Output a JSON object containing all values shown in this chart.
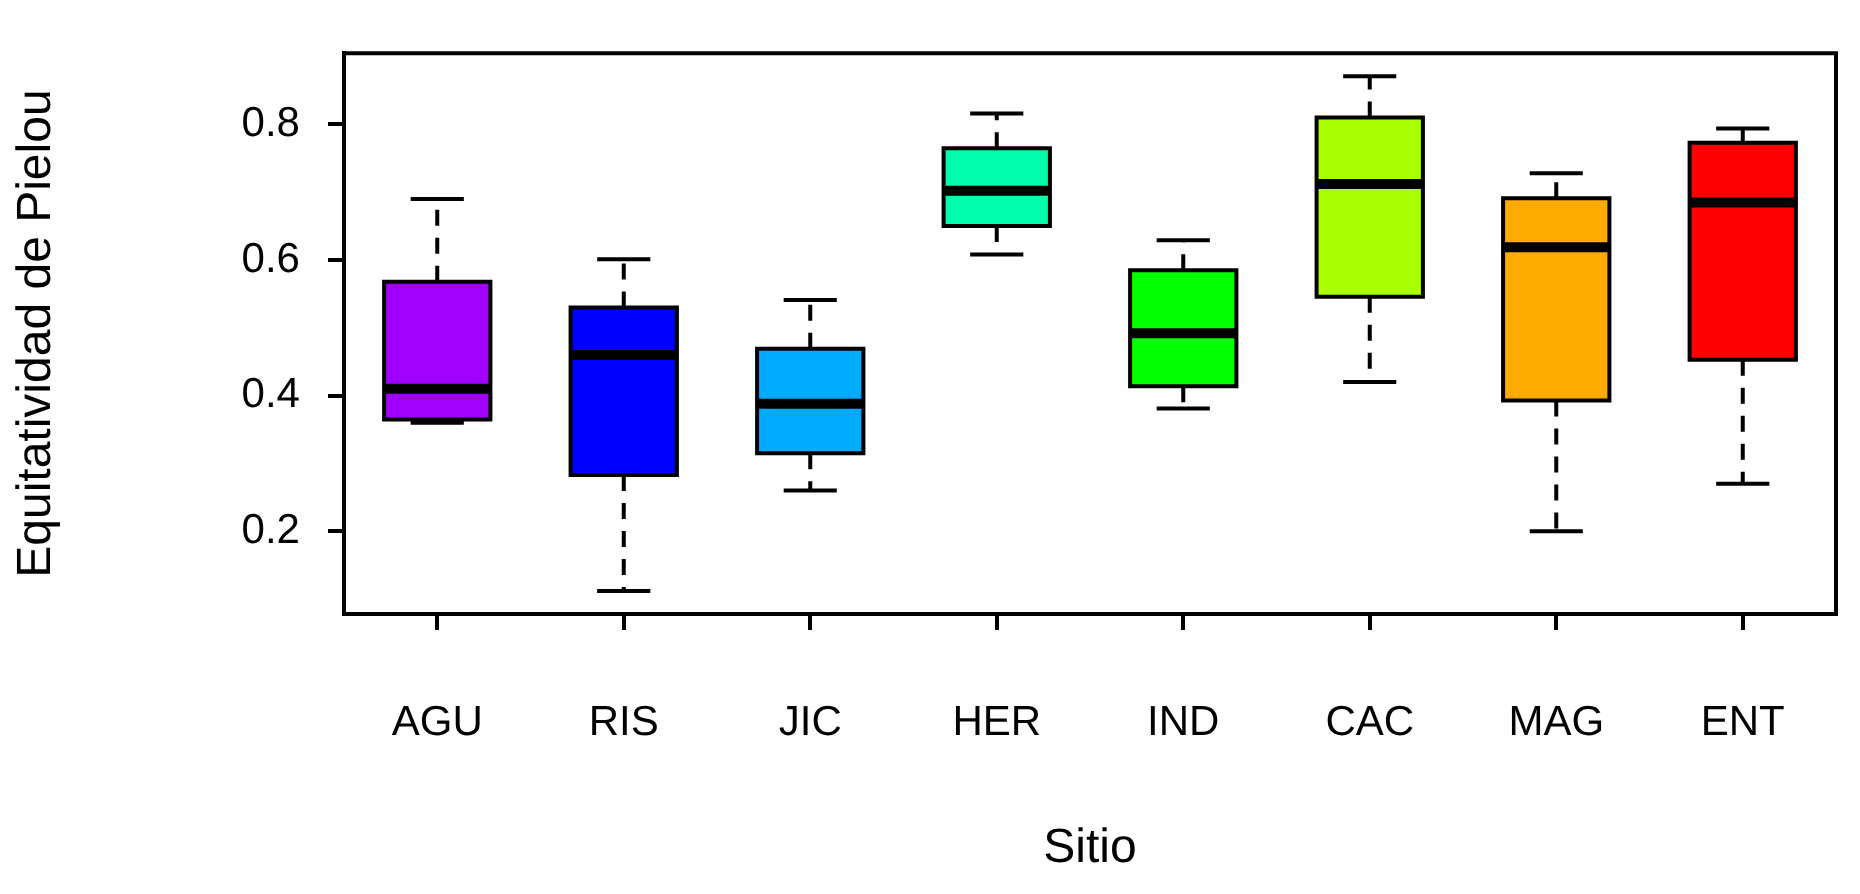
{
  "chart_data": {
    "type": "box",
    "xlabel": "Sitio",
    "ylabel": "Equitatividad de Pielou",
    "categories": [
      "AGU",
      "RIS",
      "JIC",
      "HER",
      "IND",
      "CAC",
      "MAG",
      "ENT"
    ],
    "colors": [
      "#a000ff",
      "#0000ff",
      "#00aaff",
      "#00ffaa",
      "#00ff00",
      "#aaff00",
      "#ffaa00",
      "#ff0000"
    ],
    "boxes": [
      {
        "low": 0.36,
        "q1": 0.365,
        "median": 0.41,
        "q3": 0.568,
        "high": 0.69
      },
      {
        "low": 0.112,
        "q1": 0.283,
        "median": 0.46,
        "q3": 0.53,
        "high": 0.601
      },
      {
        "low": 0.26,
        "q1": 0.315,
        "median": 0.388,
        "q3": 0.469,
        "high": 0.541
      },
      {
        "low": 0.608,
        "q1": 0.65,
        "median": 0.702,
        "q3": 0.765,
        "high": 0.816
      },
      {
        "low": 0.381,
        "q1": 0.414,
        "median": 0.492,
        "q3": 0.585,
        "high": 0.629
      },
      {
        "low": 0.42,
        "q1": 0.546,
        "median": 0.712,
        "q3": 0.81,
        "high": 0.871
      },
      {
        "low": 0.2,
        "q1": 0.393,
        "median": 0.619,
        "q3": 0.691,
        "high": 0.728
      },
      {
        "low": 0.27,
        "q1": 0.453,
        "median": 0.685,
        "q3": 0.773,
        "high": 0.794
      }
    ],
    "ylim": [
      0.078,
      0.905
    ],
    "yticks": [
      0.2,
      0.4,
      0.6,
      0.8
    ],
    "grid": false,
    "legend": false
  }
}
